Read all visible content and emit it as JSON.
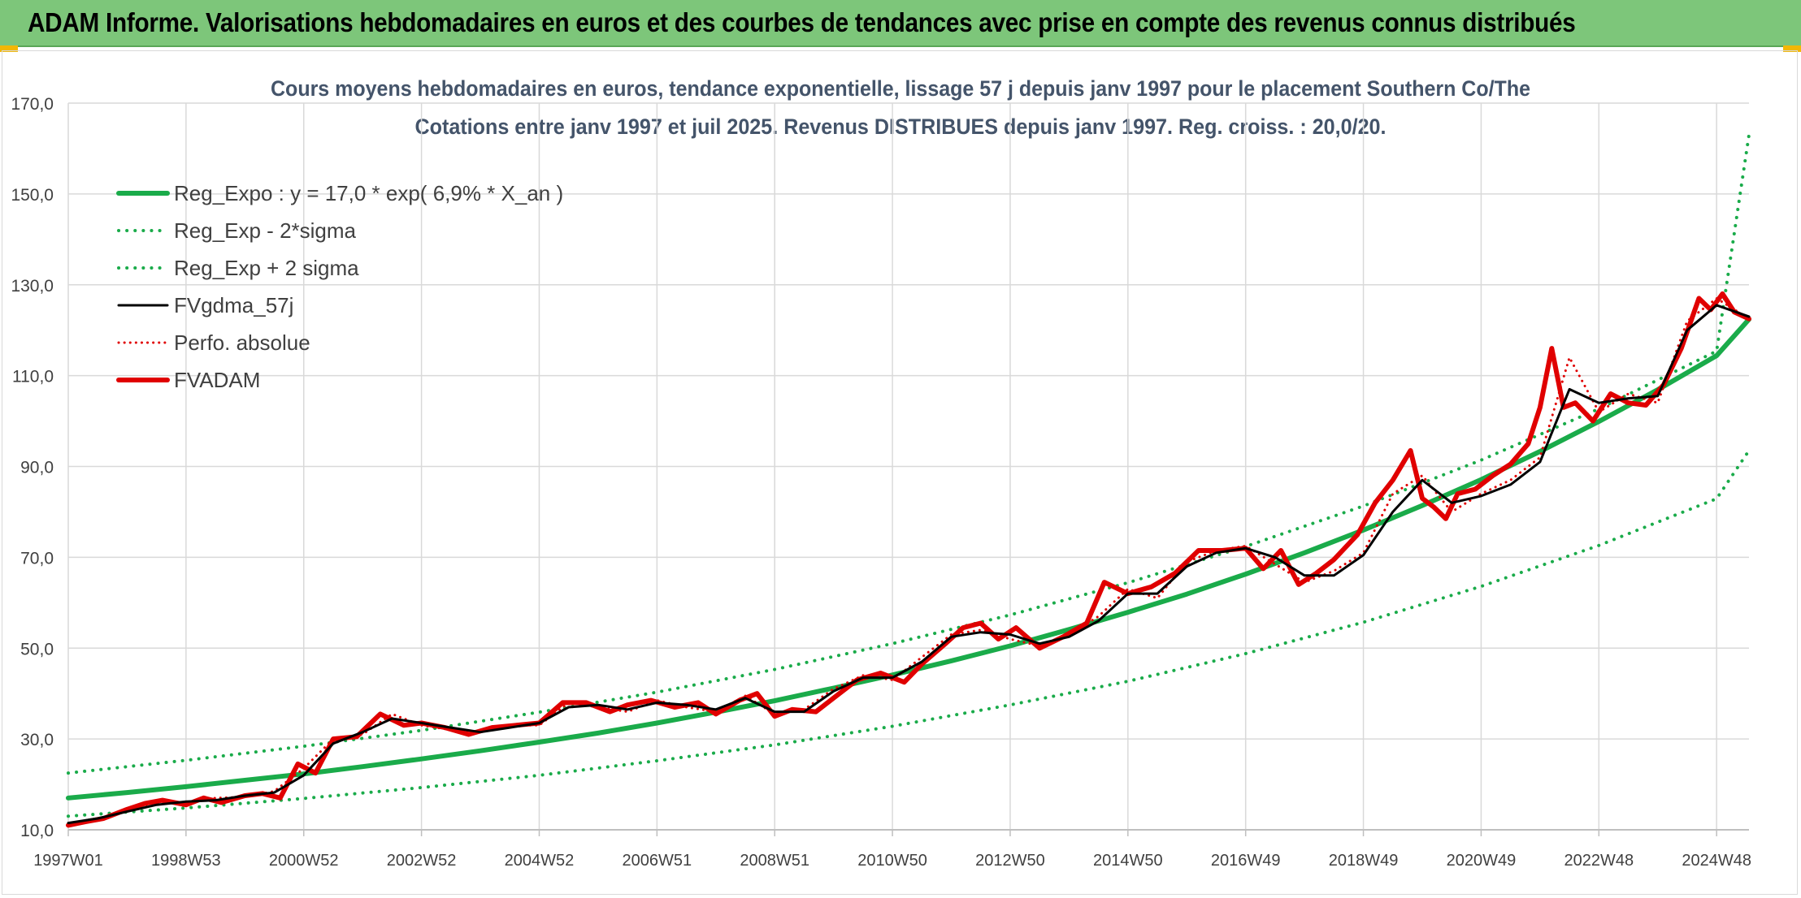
{
  "header": {
    "title": "ADAM Informe. Valorisations hebdomadaires en euros et des courbes de tendances avec prise en compte des revenus connus distribués"
  },
  "chart_data": {
    "type": "line",
    "title": "Cours moyens hebdomadaires en euros, tendance exponentielle, lissage 57 j depuis janv 1997 pour le placement Southern Co/The",
    "subtitle": "Cotations entre janv 1997 et juil 2025. Revenus DISTRIBUES depuis janv 1997. Reg. croiss. : 20,0/20.",
    "xlabel": "",
    "ylabel": "",
    "ylim": [
      10,
      170
    ],
    "xlim": [
      1997.0,
      2025.55
    ],
    "y_ticks": [
      "10,0",
      "30,0",
      "50,0",
      "70,0",
      "90,0",
      "110,0",
      "130,0",
      "150,0",
      "170,0"
    ],
    "y_tick_values": [
      10,
      30,
      50,
      70,
      90,
      110,
      130,
      150,
      170
    ],
    "x_ticks": [
      "1997W01",
      "1998W53",
      "2000W52",
      "2002W52",
      "2004W52",
      "2006W51",
      "2008W51",
      "2010W50",
      "2012W50",
      "2014W50",
      "2016W49",
      "2018W49",
      "2020W49",
      "2022W48",
      "2024W48"
    ],
    "x_tick_values": [
      1997.0,
      1999.0,
      2001.0,
      2003.0,
      2005.0,
      2007.0,
      2009.0,
      2011.0,
      2013.0,
      2015.0,
      2017.0,
      2019.0,
      2021.0,
      2023.0,
      2025.0
    ],
    "grid": true,
    "legend_position": "top-left",
    "series": [
      {
        "name": "Reg_Expo : y = 17,0 * exp( 6,9% *  X_an )",
        "color": "#1aab4a",
        "style": "solid",
        "width": 6,
        "x": [
          1997.0,
          1998.0,
          1999.0,
          2000.0,
          2001.0,
          2002.0,
          2003.0,
          2004.0,
          2005.0,
          2006.0,
          2007.0,
          2008.0,
          2009.0,
          2010.0,
          2011.0,
          2012.0,
          2013.0,
          2014.0,
          2015.0,
          2016.0,
          2017.0,
          2018.0,
          2019.0,
          2020.0,
          2021.0,
          2022.0,
          2023.0,
          2024.0,
          2025.0,
          2025.55
        ],
        "y": [
          17.0,
          18.2,
          19.5,
          20.9,
          22.3,
          23.9,
          25.6,
          27.4,
          29.3,
          31.3,
          33.5,
          35.9,
          38.4,
          41.2,
          44.1,
          47.2,
          50.5,
          54.1,
          57.9,
          61.9,
          66.3,
          71.0,
          76.0,
          81.4,
          87.1,
          93.3,
          99.9,
          106.9,
          114.4,
          122.4
        ]
      },
      {
        "name": "Reg_Exp - 2*sigma",
        "color": "#1aab4a",
        "style": "dotted",
        "width": 4,
        "x": [
          1997.0,
          1999.0,
          2001.0,
          2003.0,
          2005.0,
          2007.0,
          2009.0,
          2011.0,
          2013.0,
          2015.0,
          2017.0,
          2019.0,
          2021.0,
          2023.0,
          2025.0,
          2025.55
        ],
        "y": [
          13.0,
          14.8,
          16.9,
          19.3,
          22.0,
          25.2,
          28.7,
          32.8,
          37.5,
          42.7,
          48.8,
          55.7,
          63.6,
          72.6,
          82.9,
          93.5
        ]
      },
      {
        "name": "Reg_Exp + 2 sigma",
        "color": "#1aab4a",
        "style": "dotted",
        "width": 4,
        "x": [
          1997.0,
          1999.0,
          2001.0,
          2003.0,
          2005.0,
          2007.0,
          2009.0,
          2011.0,
          2013.0,
          2015.0,
          2017.0,
          2019.0,
          2021.0,
          2023.0,
          2025.0,
          2025.55
        ],
        "y": [
          22.5,
          25.3,
          28.4,
          31.9,
          35.9,
          40.3,
          45.3,
          51.0,
          57.3,
          64.4,
          72.4,
          81.3,
          91.4,
          102.7,
          115.4,
          163.0
        ]
      },
      {
        "name": "FVgdma_57j",
        "color": "#000000",
        "style": "solid",
        "width": 3,
        "x": [
          1997.0,
          1997.5,
          1998.0,
          1998.5,
          1999.0,
          1999.5,
          2000.0,
          2000.5,
          2001.0,
          2001.5,
          2002.0,
          2002.5,
          2003.0,
          2003.5,
          2004.0,
          2004.5,
          2005.0,
          2005.5,
          2006.0,
          2006.5,
          2007.0,
          2007.5,
          2008.0,
          2008.5,
          2009.0,
          2009.5,
          2010.0,
          2010.5,
          2011.0,
          2011.5,
          2012.0,
          2012.5,
          2013.0,
          2013.5,
          2014.0,
          2014.5,
          2015.0,
          2015.5,
          2016.0,
          2016.5,
          2017.0,
          2017.5,
          2018.0,
          2018.5,
          2019.0,
          2019.5,
          2020.0,
          2020.5,
          2021.0,
          2021.5,
          2022.0,
          2022.5,
          2023.0,
          2023.5,
          2024.0,
          2024.5,
          2025.0,
          2025.55
        ],
        "y": [
          11.5,
          12.5,
          14.0,
          15.5,
          16.2,
          16.5,
          17.5,
          18.2,
          22.0,
          29.0,
          31.5,
          34.5,
          33.5,
          32.5,
          31.5,
          32.5,
          33.5,
          37.0,
          37.5,
          36.5,
          38.0,
          37.5,
          36.5,
          39.0,
          36.0,
          36.0,
          40.5,
          43.5,
          43.5,
          47.0,
          52.5,
          53.5,
          53.0,
          51.0,
          52.5,
          56.0,
          62.0,
          62.0,
          68.0,
          71.0,
          72.0,
          70.0,
          66.0,
          66.0,
          70.5,
          80.0,
          87.0,
          82.0,
          83.5,
          86.0,
          91.0,
          107.0,
          104.0,
          105.0,
          105.5,
          120.0,
          125.5,
          123.0
        ]
      },
      {
        "name": "Perfo. absolue",
        "color": "#e00000",
        "style": "dotted",
        "width": 3,
        "x": [
          1997.0,
          1997.5,
          1998.0,
          1998.5,
          1999.0,
          1999.5,
          2000.0,
          2000.5,
          2001.0,
          2001.5,
          2002.0,
          2002.5,
          2003.0,
          2003.5,
          2004.0,
          2004.5,
          2005.0,
          2005.5,
          2006.0,
          2006.5,
          2007.0,
          2007.5,
          2008.0,
          2008.5,
          2009.0,
          2009.5,
          2010.0,
          2010.5,
          2011.0,
          2011.5,
          2012.0,
          2012.5,
          2013.0,
          2013.5,
          2014.0,
          2014.5,
          2015.0,
          2015.5,
          2016.0,
          2016.5,
          2017.0,
          2017.5,
          2018.0,
          2018.5,
          2019.0,
          2019.5,
          2020.0,
          2020.5,
          2021.0,
          2021.5,
          2022.0,
          2022.5,
          2023.0,
          2023.5,
          2024.0,
          2024.5,
          2025.0,
          2025.55
        ],
        "y": [
          11.0,
          12.2,
          14.5,
          16.0,
          15.8,
          17.0,
          17.2,
          18.5,
          23.5,
          30.0,
          31.0,
          35.5,
          33.0,
          32.0,
          31.5,
          33.0,
          33.0,
          38.0,
          37.0,
          36.0,
          38.5,
          37.0,
          36.0,
          39.5,
          35.5,
          36.5,
          41.0,
          44.0,
          43.0,
          48.0,
          53.0,
          54.0,
          52.0,
          50.5,
          53.0,
          57.0,
          63.0,
          61.0,
          69.0,
          71.5,
          72.5,
          68.5,
          64.5,
          67.0,
          71.0,
          84.0,
          88.0,
          80.0,
          84.0,
          87.0,
          92.0,
          114.0,
          102.0,
          106.0,
          104.0,
          122.0,
          127.0,
          122.5
        ]
      },
      {
        "name": "FVADAM",
        "color": "#e00000",
        "style": "solid",
        "width": 6,
        "x": [
          1997.0,
          1997.3,
          1997.6,
          1998.0,
          1998.3,
          1998.6,
          1999.0,
          1999.3,
          1999.6,
          2000.0,
          2000.3,
          2000.6,
          2000.9,
          2001.2,
          2001.5,
          2001.9,
          2002.3,
          2002.7,
          2003.0,
          2003.4,
          2003.8,
          2004.2,
          2004.6,
          2005.0,
          2005.4,
          2005.8,
          2006.2,
          2006.5,
          2006.9,
          2007.3,
          2007.7,
          2008.0,
          2008.4,
          2008.7,
          2009.0,
          2009.3,
          2009.7,
          2010.0,
          2010.4,
          2010.8,
          2011.2,
          2011.5,
          2011.9,
          2012.2,
          2012.5,
          2012.8,
          2013.1,
          2013.5,
          2013.9,
          2014.3,
          2014.6,
          2015.0,
          2015.4,
          2015.8,
          2016.2,
          2016.6,
          2017.0,
          2017.3,
          2017.6,
          2017.9,
          2018.2,
          2018.5,
          2018.9,
          2019.2,
          2019.5,
          2019.8,
          2020.0,
          2020.2,
          2020.4,
          2020.6,
          2020.9,
          2021.2,
          2021.5,
          2021.8,
          2022.0,
          2022.2,
          2022.4,
          2022.6,
          2022.9,
          2023.2,
          2023.5,
          2023.8,
          2024.1,
          2024.4,
          2024.7,
          2024.9,
          2025.1,
          2025.3,
          2025.55
        ],
        "y": [
          11.0,
          11.8,
          12.5,
          14.5,
          15.8,
          16.5,
          15.5,
          17.0,
          16.0,
          17.5,
          18.0,
          17.0,
          24.5,
          22.5,
          30.0,
          30.5,
          35.5,
          33.0,
          33.5,
          32.5,
          31.0,
          32.5,
          33.0,
          33.5,
          38.0,
          38.0,
          36.0,
          37.5,
          38.5,
          37.0,
          38.0,
          35.5,
          38.5,
          40.0,
          35.0,
          36.5,
          36.0,
          39.0,
          43.0,
          44.5,
          42.5,
          46.5,
          51.0,
          54.5,
          55.5,
          52.0,
          54.5,
          50.0,
          52.5,
          55.5,
          64.5,
          62.0,
          63.5,
          66.5,
          71.5,
          71.5,
          72.0,
          67.5,
          71.5,
          64.0,
          66.5,
          69.5,
          75.0,
          82.0,
          87.0,
          93.5,
          83.0,
          81.0,
          78.5,
          84.0,
          85.0,
          88.0,
          90.5,
          95.0,
          103.0,
          116.0,
          103.0,
          104.0,
          100.0,
          106.0,
          104.0,
          103.5,
          108.0,
          116.0,
          127.0,
          124.5,
          128.0,
          124.0,
          122.5
        ]
      }
    ]
  }
}
